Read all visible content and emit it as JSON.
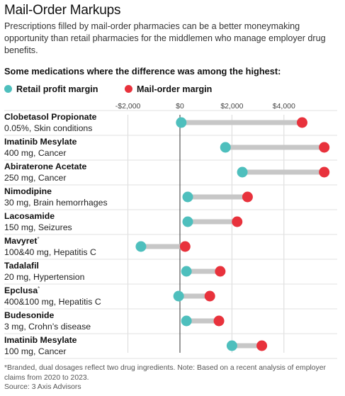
{
  "header": {
    "title": "Mail-Order Markups",
    "subtitle": "Prescriptions filled by mail-order pharmacies can be a better moneymaking opportunity than retail pharmacies for the middlemen who manage employer drug benefits.",
    "chart_heading": "Some medications where the difference was among the highest:"
  },
  "legend": [
    {
      "label": "Retail profit margin",
      "color": "#4ebfbd"
    },
    {
      "label": "Mail-order margin",
      "color": "#e8323c"
    }
  ],
  "colors": {
    "retail": "#4ebfbd",
    "mail": "#e8323c",
    "connector": "#c7c7c7",
    "grid": "#d9d9d9",
    "zero_line": "#333333"
  },
  "chart_data": {
    "type": "dumbbell",
    "x_ticks": [
      -2000,
      0,
      2000,
      4000
    ],
    "x_tick_labels": [
      "-$2,000",
      "$0",
      "$2,000",
      "$4,000"
    ],
    "xlim": [
      -2700,
      5700
    ],
    "grid": true,
    "legend_position": "top-left",
    "series": [
      {
        "name": "Retail profit margin",
        "key": "retail"
      },
      {
        "name": "Mail-order margin",
        "key": "mail"
      }
    ],
    "rows": [
      {
        "name": "Clobetasol Propionate",
        "sup": "",
        "detail": "0.05%, Skin conditions",
        "retail": 50,
        "mail": 4700
      },
      {
        "name": "Imatinib Mesylate",
        "sup": "",
        "detail": "400 mg, Cancer",
        "retail": 1750,
        "mail": 5550
      },
      {
        "name": "Abiraterone Acetate",
        "sup": "",
        "detail": "250 mg, Cancer",
        "retail": 2400,
        "mail": 5550
      },
      {
        "name": "Nimodipine",
        "sup": "",
        "detail": "30 mg, Brain hemorrhages",
        "retail": 300,
        "mail": 2600
      },
      {
        "name": "Lacosamide",
        "sup": "",
        "detail": "150 mg, Seizures",
        "retail": 300,
        "mail": 2200
      },
      {
        "name": "Mavyret",
        "sup": "*",
        "detail": "100&40 mg, Hepatitis C",
        "retail": -1500,
        "mail": 200
      },
      {
        "name": "Tadalafil",
        "sup": "",
        "detail": "20 mg, Hypertension",
        "retail": 250,
        "mail": 1550
      },
      {
        "name": "Epclusa",
        "sup": "*",
        "detail": "400&100 mg, Hepatitis C",
        "retail": -50,
        "mail": 1150
      },
      {
        "name": "Budesonide",
        "sup": "",
        "detail": "3 mg, Crohn’s disease",
        "retail": 250,
        "mail": 1500
      },
      {
        "name": "Imatinib Mesylate",
        "sup": "",
        "detail": "100 mg, Cancer",
        "retail": 2000,
        "mail": 3150
      }
    ]
  },
  "footnote": "*Branded, dual dosages reflect two drug ingredients. Note: Based on a recent analysis of employer claims from 2020 to 2023.",
  "source": "Source: 3 Axis Advisors"
}
